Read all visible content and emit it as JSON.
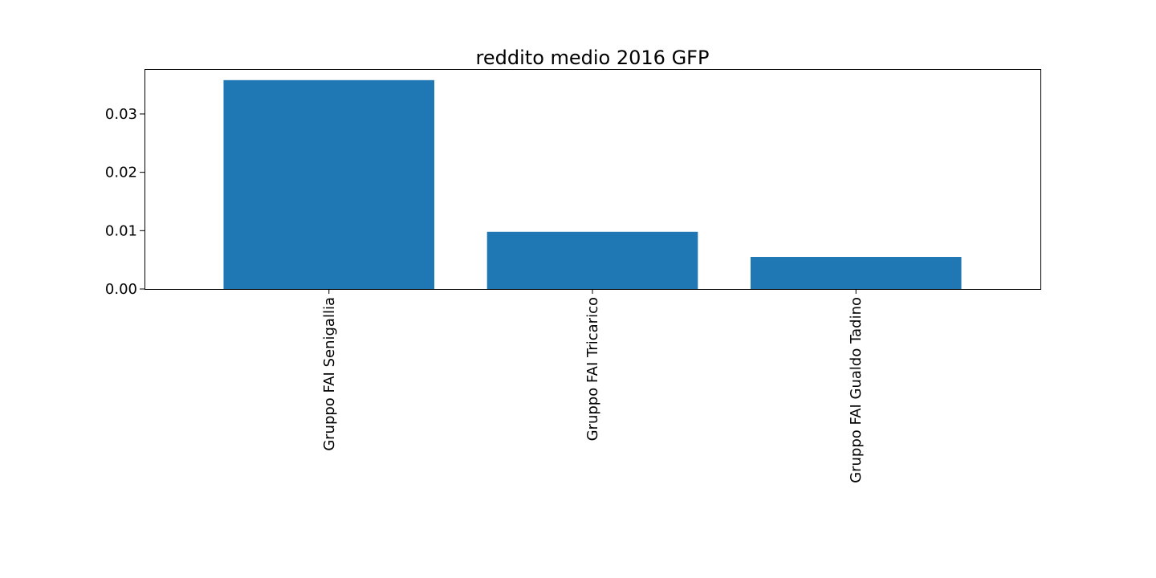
{
  "chart_data": {
    "type": "bar",
    "title": "reddito medio  2016  GFP",
    "xlabel": "",
    "ylabel": "",
    "categories": [
      "Gruppo FAI Senigallia",
      "Gruppo FAI Tricarico",
      "Gruppo FAI Gualdo Tadino"
    ],
    "values": [
      0.0358,
      0.0098,
      0.0055
    ],
    "ylim": [
      0,
      0.0377
    ],
    "yticks": [
      0.0,
      0.01,
      0.02,
      0.03
    ],
    "ytick_labels": [
      "0.00",
      "0.01",
      "0.02",
      "0.03"
    ],
    "bar_color": "#1f77b4",
    "grid": false,
    "legend": "none"
  }
}
